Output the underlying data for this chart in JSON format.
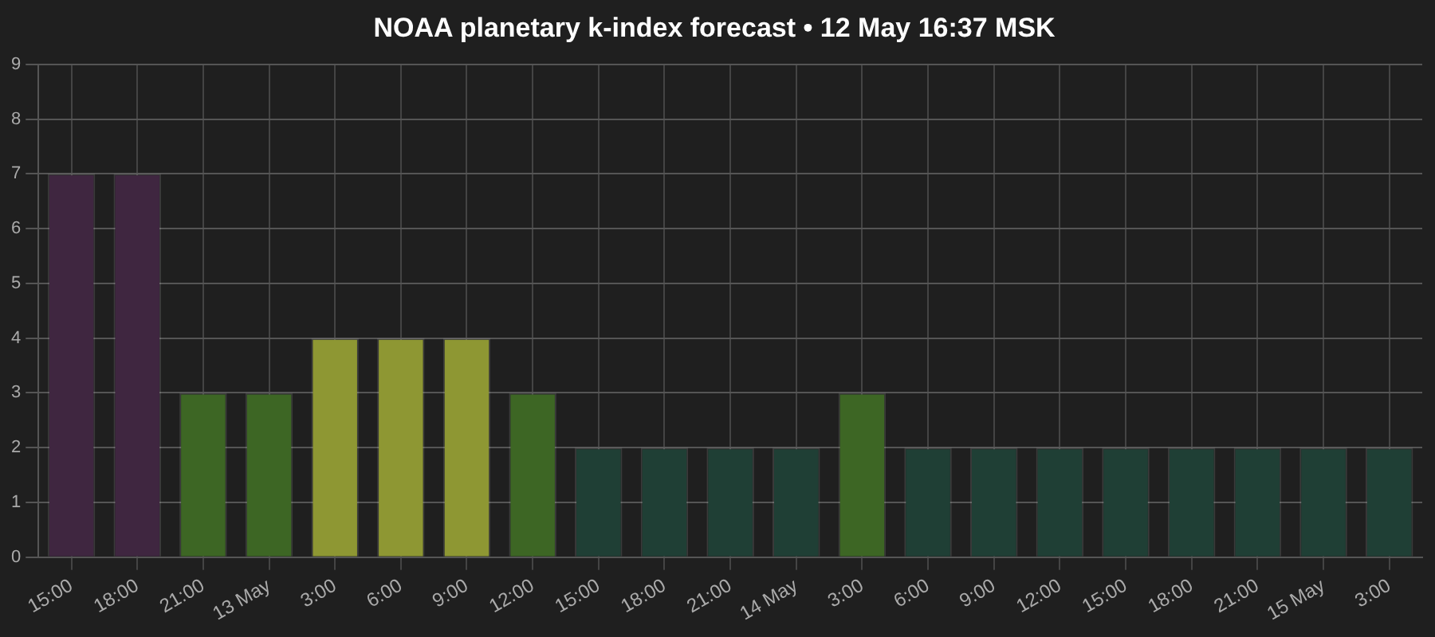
{
  "chart_data": {
    "type": "bar",
    "title": "NOAA planetary k-index forecast • 12 May 16:37 MSK",
    "categories": [
      "15:00",
      "18:00",
      "21:00",
      "13 May",
      "3:00",
      "6:00",
      "9:00",
      "12:00",
      "15:00",
      "18:00",
      "21:00",
      "14 May",
      "3:00",
      "6:00",
      "9:00",
      "12:00",
      "15:00",
      "18:00",
      "21:00",
      "15 May",
      "3:00"
    ],
    "values": [
      7,
      7,
      3,
      3,
      4,
      4,
      4,
      3,
      2,
      2,
      2,
      2,
      3,
      2,
      2,
      2,
      2,
      2,
      2,
      2,
      2
    ],
    "colors": [
      "#3f2640",
      "#3f2640",
      "#3d6624",
      "#3d6624",
      "#8e9733",
      "#8e9733",
      "#8e9733",
      "#3d6624",
      "#1f3f35",
      "#1f3f35",
      "#1f3f35",
      "#1f3f35",
      "#3d6624",
      "#1f3f35",
      "#1f3f35",
      "#1f3f35",
      "#1f3f35",
      "#1f3f35",
      "#1f3f35",
      "#1f3f35",
      "#1f3f35"
    ],
    "ylim": [
      0,
      9
    ],
    "yticks": [
      0,
      1,
      2,
      3,
      4,
      5,
      6,
      7,
      8,
      9
    ],
    "grid": true,
    "legend": false
  }
}
